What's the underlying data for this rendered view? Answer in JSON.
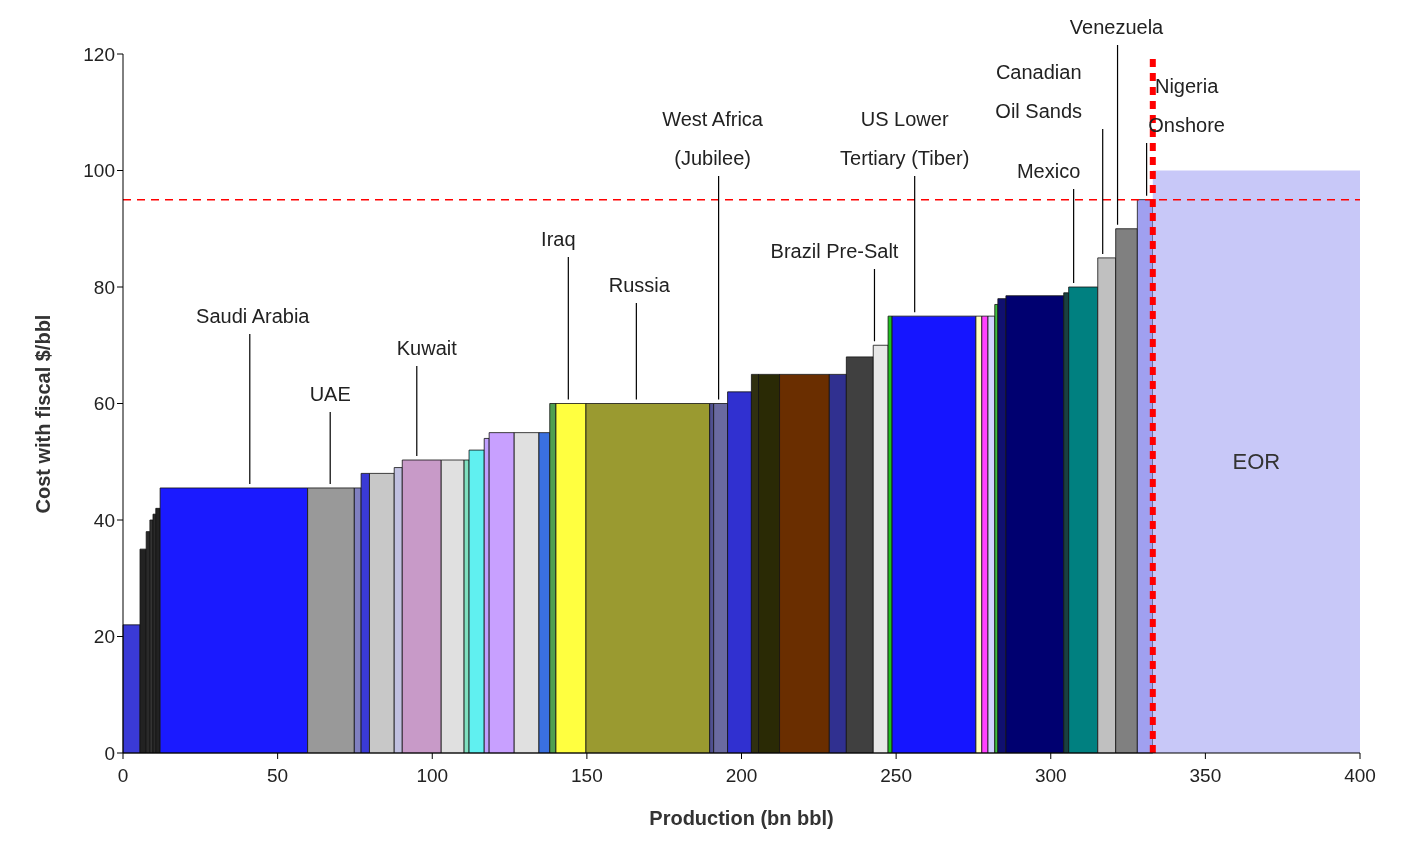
{
  "chart_data": {
    "type": "histogram",
    "xlabel": "Production (bn bbl)",
    "ylabel": "Cost with fiscal $/bbl",
    "bins": [
      0,
      5.5,
      7.5,
      8.7,
      9.7,
      10.6,
      12,
      59.7,
      74.8,
      77,
      79.7,
      87.7,
      90.3,
      102.9,
      110.3,
      111.9,
      116.8,
      118.4,
      126.5,
      134.5,
      138,
      140,
      149.7,
      189.7,
      191,
      195.5,
      203.2,
      205.5,
      212.3,
      228.4,
      233.9,
      242.6,
      247.4,
      248.7,
      275.8,
      277.7,
      279.7,
      281.9,
      282.9,
      285.5,
      304.2,
      305.8,
      315.2,
      321,
      328,
      333,
      400
    ],
    "values": [
      22,
      35,
      38,
      40,
      41,
      42,
      45.5,
      45.5,
      45.5,
      48,
      48,
      49,
      50.3,
      50.3,
      50.3,
      52,
      54,
      55,
      55,
      55,
      60,
      60,
      60,
      60,
      60,
      62,
      65,
      65,
      65,
      65,
      68,
      70,
      75,
      75,
      75,
      75,
      75,
      77,
      78,
      78.5,
      79,
      80,
      85,
      90,
      95,
      100
    ],
    "colors": [
      "#3a3ad6",
      "#222222",
      "#2a2a2a",
      "#333333",
      "#2a2a2a",
      "#222222",
      "#1a1aff",
      "#999999",
      "#8080c0",
      "#3a3ad6",
      "#c8c8c8",
      "#c0c0e0",
      "#c89ac8",
      "#e0e0e0",
      "#80e0c0",
      "#60f0f0",
      "#c0a0ff",
      "#c8a0ff",
      "#e0e0e0",
      "#3a70e0",
      "#50a050",
      "#ffff40",
      "#9a9a30",
      "#505090",
      "#6a6aa0",
      "#3030d0",
      "#303010",
      "#2a2a05",
      "#6a2e00",
      "#303090",
      "#404040",
      "#e8e8e8",
      "#20c020",
      "#1515ff",
      "#ffffc0",
      "#ff40ff",
      "#d0d0ff",
      "#40c040",
      "#101070",
      "#000070",
      "#1a4040",
      "#008080",
      "#c0c0c0",
      "#808080",
      "#a0a0f0",
      "#c8c8f8"
    ],
    "xlim": [
      0,
      400
    ],
    "xticks": [
      0,
      50,
      100,
      150,
      200,
      250,
      300,
      350,
      400
    ],
    "ylim": [
      0,
      120
    ],
    "yticks": [
      0,
      20,
      40,
      60,
      80,
      100,
      120
    ],
    "ref_lines": [
      {
        "axis": "y",
        "value": 95,
        "color": "#ff0000",
        "line_style": "dashed"
      },
      {
        "axis": "x",
        "value": 333,
        "color": "#ff0000",
        "line_style": "dashed"
      }
    ],
    "annotations": [
      {
        "text": "Saudi Arabia",
        "x": 41,
        "y": 45.5
      },
      {
        "text": "UAE",
        "x": 67,
        "y": 45.5
      },
      {
        "text": "Kuwait",
        "x": 95,
        "y": 50.3
      },
      {
        "text": "Iraq",
        "x": 144,
        "y": 60
      },
      {
        "text": "Russia",
        "x": 166,
        "y": 60
      },
      {
        "text": "West Africa\n(Jubilee)",
        "x": 192.6,
        "y": 60
      },
      {
        "text": "Brazil Pre-Salt",
        "x": 243,
        "y": 70
      },
      {
        "text": "US Lower\nTertiary (Tiber)",
        "x": 256,
        "y": 75
      },
      {
        "text": "Mexico",
        "x": 307.4,
        "y": 80
      },
      {
        "text": "Canadian\nOil Sands",
        "x": 316.8,
        "y": 85
      },
      {
        "text": "Venezuela",
        "x": 321.6,
        "y": 90
      },
      {
        "text": "Nigeria\nOnshore",
        "x": 331,
        "y": 95
      },
      "EOR"
    ]
  }
}
